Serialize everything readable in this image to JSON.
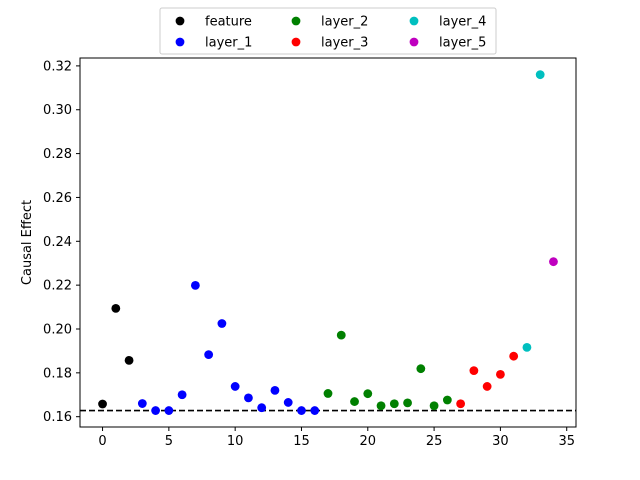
{
  "chart_data": {
    "type": "scatter",
    "title": "",
    "xlabel": "",
    "ylabel": "Causal Effect",
    "xlim": [
      -1.7,
      35.7
    ],
    "ylim": [
      0.1553,
      0.3236
    ],
    "xticks": [
      0,
      5,
      10,
      15,
      20,
      25,
      30,
      35
    ],
    "yticks": [
      0.16,
      0.18,
      0.2,
      0.22,
      0.24,
      0.26,
      0.28,
      0.3,
      0.32
    ],
    "ytick_labels": [
      "0.16",
      "0.18",
      "0.20",
      "0.22",
      "0.24",
      "0.26",
      "0.28",
      "0.30",
      "0.32"
    ],
    "grid": false,
    "legend_position": "upper-center",
    "reference_line": {
      "y": 0.1628,
      "style": "dashed",
      "color": "#000000"
    },
    "series": [
      {
        "name": "feature",
        "color": "#000000",
        "points": [
          [
            0,
            0.1658
          ],
          [
            1,
            0.2094
          ],
          [
            2,
            0.1857
          ]
        ]
      },
      {
        "name": "layer_1",
        "color": "#0000ff",
        "points": [
          [
            3,
            0.166
          ],
          [
            4,
            0.1628
          ],
          [
            5,
            0.1628
          ],
          [
            6,
            0.17
          ],
          [
            7,
            0.2199
          ],
          [
            8,
            0.1883
          ],
          [
            9,
            0.2025
          ],
          [
            10,
            0.1738
          ],
          [
            11,
            0.1686
          ],
          [
            12,
            0.1641
          ],
          [
            13,
            0.172
          ],
          [
            14,
            0.1665
          ],
          [
            15,
            0.1628
          ],
          [
            16,
            0.1628
          ]
        ]
      },
      {
        "name": "layer_2",
        "color": "#008000",
        "points": [
          [
            17,
            0.1706
          ],
          [
            18,
            0.1972
          ],
          [
            19,
            0.1669
          ],
          [
            20,
            0.1705
          ],
          [
            21,
            0.165
          ],
          [
            22,
            0.1659
          ],
          [
            23,
            0.1663
          ],
          [
            24,
            0.1819
          ],
          [
            25,
            0.165
          ],
          [
            26,
            0.1676
          ]
        ]
      },
      {
        "name": "layer_3",
        "color": "#ff0000",
        "points": [
          [
            27,
            0.1659
          ],
          [
            28,
            0.181
          ],
          [
            29,
            0.1738
          ],
          [
            30,
            0.1793
          ],
          [
            31,
            0.1876
          ]
        ]
      },
      {
        "name": "layer_4",
        "color": "#00bfbf",
        "points": [
          [
            32,
            0.1916
          ],
          [
            33,
            0.316
          ]
        ]
      },
      {
        "name": "layer_5",
        "color": "#bf00bf",
        "points": [
          [
            34,
            0.2307
          ]
        ]
      }
    ]
  }
}
